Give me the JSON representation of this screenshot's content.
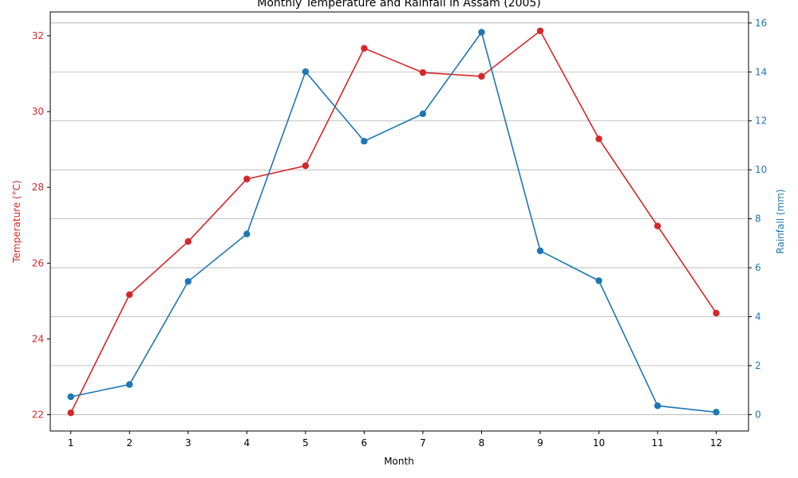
{
  "chart_data": {
    "type": "line",
    "title": "Monthly Temperature and Rainfall in Assam (2005)",
    "xlabel": "Month",
    "ylabel_left": "Temperature (°C)",
    "ylabel_right": "Rainfall (mm)",
    "x": [
      1,
      2,
      3,
      4,
      5,
      6,
      7,
      8,
      9,
      10,
      11,
      12
    ],
    "x_ticks": [
      "1",
      "2",
      "3",
      "4",
      "5",
      "6",
      "7",
      "8",
      "9",
      "10",
      "11",
      "12"
    ],
    "xlim": [
      0.65,
      12.55
    ],
    "ylim_left": [
      21.57,
      32.63
    ],
    "ylim_right": [
      -0.67,
      16.45
    ],
    "yticks_left": [
      22,
      24,
      26,
      28,
      30,
      32
    ],
    "yticks_right": [
      0,
      2,
      4,
      6,
      8,
      10,
      12,
      14,
      16
    ],
    "grid": "horizontal-right-axis",
    "series": [
      {
        "name": "Temperature (°C)",
        "axis": "left",
        "color": "#d62728",
        "values": [
          22.05,
          25.17,
          26.57,
          28.22,
          28.57,
          31.67,
          31.03,
          30.93,
          32.13,
          29.28,
          26.98,
          24.68
        ]
      },
      {
        "name": "Rainfall (mm)",
        "axis": "right",
        "color": "#1f77b4",
        "values": [
          0.73,
          1.23,
          5.44,
          7.38,
          14.01,
          11.17,
          12.29,
          15.62,
          6.69,
          5.47,
          0.36,
          0.1
        ]
      }
    ]
  }
}
